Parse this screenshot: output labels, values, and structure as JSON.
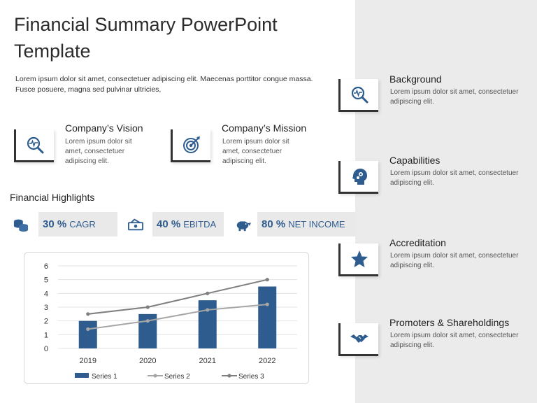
{
  "header": {
    "title_line1": "Financial Summary PowerPoint",
    "title_line2": "Template",
    "intro": "Lorem ipsum dolor sit amet, consectetuer adipiscing elit. Maecenas porttitor congue massa. Fusce posuere, magna sed pulvinar ultricies,"
  },
  "vision": {
    "title": "Company’s Vision",
    "text": "Lorem ipsum dolor sit amet, consectetuer adipiscing elit.",
    "icon": "magnifier-pulse-icon"
  },
  "mission": {
    "title": "Company’s Mission",
    "text": "Lorem ipsum dolor sit amet, consectetuer adipiscing elit.",
    "icon": "target-icon"
  },
  "highlights": {
    "title": "Financial Highlights",
    "metrics": [
      {
        "value": "30 %",
        "label": "CAGR",
        "icon": "coins-icon"
      },
      {
        "value": "40 %",
        "label": "EBITDA",
        "icon": "cash-icon"
      },
      {
        "value": "80 %",
        "label": "NET INCOME",
        "icon": "piggy-bank-icon"
      }
    ]
  },
  "right_items": [
    {
      "title": "Background",
      "text": "Lorem ipsum dolor sit amet, consectetuer adipiscing elit.",
      "icon": "magnifier-pulse-icon"
    },
    {
      "title": "Capabilities",
      "text": "Lorem ipsum dolor sit amet, consectetuer adipiscing elit.",
      "icon": "head-gears-icon"
    },
    {
      "title": "Accreditation",
      "text": "Lorem ipsum dolor sit amet, consectetuer adipiscing elit.",
      "icon": "star-icon"
    },
    {
      "title": "Promoters & Shareholdings",
      "text": "Lorem ipsum dolor sit amet, consectetuer adipiscing elit.",
      "icon": "handshake-icon"
    }
  ],
  "colors": {
    "accent": "#2e5c8f",
    "panel": "#ebebeb",
    "series1": "#2e5c8f",
    "series2": "#a6a6a6",
    "series3": "#7f7f7f"
  },
  "chart_data": {
    "type": "bar",
    "categories": [
      "2019",
      "2020",
      "2021",
      "2022"
    ],
    "series": [
      {
        "name": "Series 1",
        "type": "bar",
        "values": [
          2,
          2.5,
          3.5,
          4.5
        ]
      },
      {
        "name": "Series 2",
        "type": "line",
        "values": [
          1.4,
          2,
          2.8,
          3.2
        ]
      },
      {
        "name": "Series 3",
        "type": "line",
        "values": [
          2.5,
          3,
          4,
          5
        ]
      }
    ],
    "ylim": [
      0,
      6
    ],
    "yticks": [
      "0",
      "1",
      "2",
      "3",
      "4",
      "5",
      "6"
    ],
    "grid": true,
    "legend": "bottom"
  }
}
